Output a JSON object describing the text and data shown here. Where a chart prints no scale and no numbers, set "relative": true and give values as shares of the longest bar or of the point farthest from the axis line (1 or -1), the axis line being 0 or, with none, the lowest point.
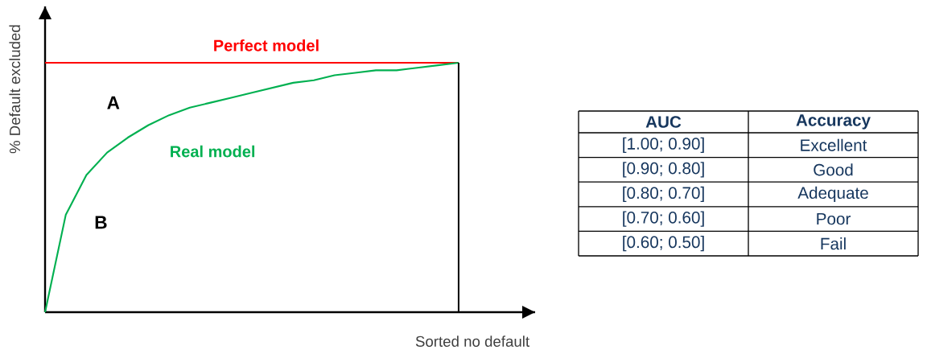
{
  "chart_data": [
    {
      "type": "line",
      "relative": true,
      "xlabel": "Sorted no default",
      "ylabel": "% Default excluded",
      "categories": [
        null,
        null,
        null,
        null,
        null,
        null,
        null,
        null,
        null,
        null,
        null,
        null,
        null,
        null,
        null,
        null,
        null,
        null,
        null,
        null,
        null
      ],
      "series": [
        {
          "name": "Perfect model",
          "color": "#ff0000",
          "values": [
            1,
            1,
            1,
            1,
            1,
            1,
            1,
            1,
            1,
            1,
            1,
            1,
            1,
            1,
            1,
            1,
            1,
            1,
            1,
            1,
            1
          ]
        },
        {
          "name": "Real model",
          "color": "#00b050",
          "values": [
            0,
            0.39,
            0.55,
            0.64,
            0.7,
            0.75,
            0.79,
            0.82,
            0.84,
            0.86,
            0.88,
            0.9,
            0.92,
            0.93,
            0.95,
            0.96,
            0.97,
            0.97,
            0.98,
            0.99,
            1
          ]
        }
      ],
      "annotations": [
        "A",
        "B"
      ]
    },
    {
      "type": "other",
      "annotations": [
        "AUC",
        "Accuracy",
        "[1.00; 0.90]",
        "Excellent",
        "[0.90; 0.80]",
        "Good",
        "[0.80; 0.70]",
        "Adequate",
        "[0.70; 0.60]",
        "Poor",
        "[0.60; 0.50]",
        "Fail"
      ]
    }
  ]
}
